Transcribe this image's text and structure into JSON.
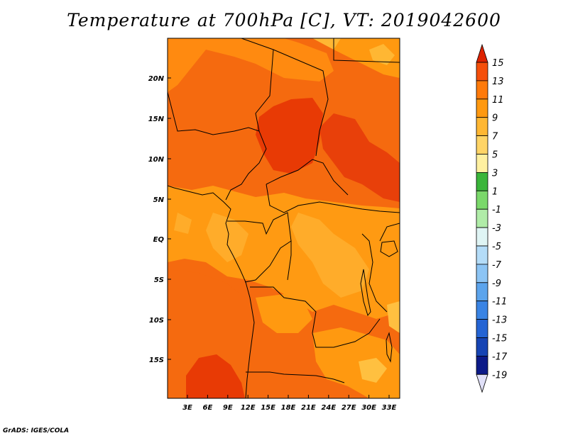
{
  "title": "Temperature at 700hPa [C], VT: 2019042600",
  "credit": "GrADS: IGES/COLA",
  "map": {
    "lat_ticks": [
      "20N",
      "15N",
      "10N",
      "5N",
      "EQ",
      "5S",
      "10S",
      "15S"
    ],
    "lon_ticks": [
      "3E",
      "6E",
      "9E",
      "12E",
      "15E",
      "18E",
      "21E",
      "24E",
      "27E",
      "30E",
      "33E"
    ],
    "lat_range": [
      -20,
      24.5
    ],
    "lon_range": [
      0,
      35
    ]
  },
  "colorbar": {
    "labels": [
      "15",
      "13",
      "11",
      "9",
      "7",
      "5",
      "3",
      "1",
      "-1",
      "-3",
      "-5",
      "-7",
      "-9",
      "-11",
      "-13",
      "-15",
      "-17",
      "-19"
    ],
    "colors": [
      "#dd2200",
      "#f54f0a",
      "#ff7a0a",
      "#ff9910",
      "#ffb733",
      "#ffd466",
      "#fff0a0",
      "#3ab53a",
      "#7ad86a",
      "#b0eca8",
      "#dff4f4",
      "#b4dcf8",
      "#8cc4f4",
      "#5ca4ec",
      "#3a84e4",
      "#2464d4",
      "#1644b4",
      "#0c1a88",
      "#e0e0f8"
    ]
  }
}
